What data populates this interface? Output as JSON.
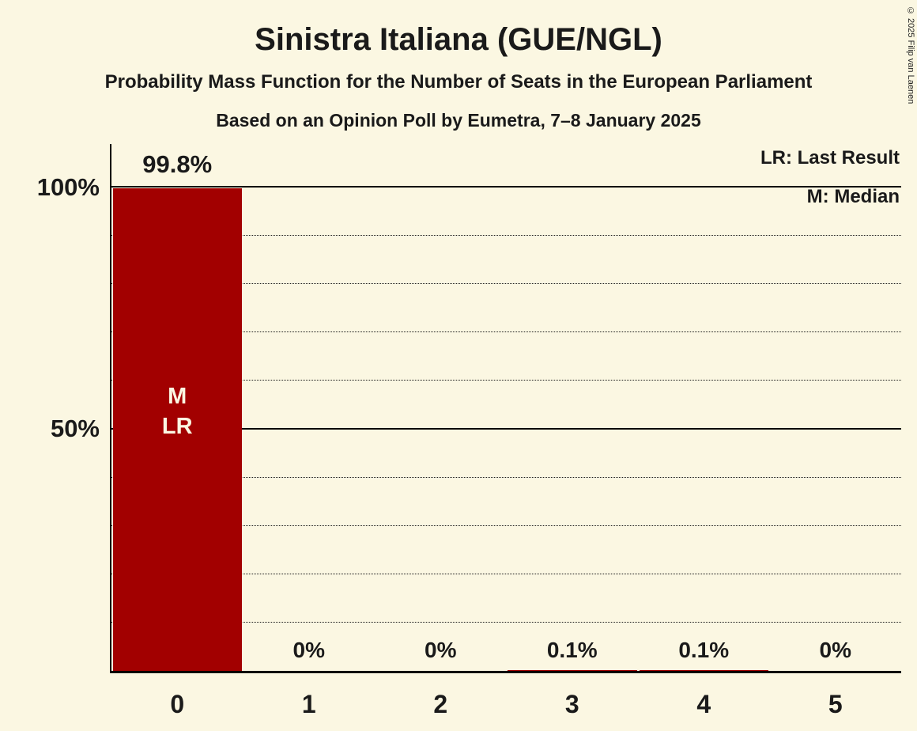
{
  "title": "Sinistra Italiana (GUE/NGL)",
  "subtitle": "Probability Mass Function for the Number of Seats in the European Parliament",
  "poll_info": "Based on an Opinion Poll by Eumetra, 7–8 January 2025",
  "copyright": "© 2025 Filip van Laenen",
  "legend": {
    "last_result": "LR: Last Result",
    "median": "M: Median"
  },
  "y_axis": {
    "tick_100": "100%",
    "tick_50": "50%"
  },
  "bar_marker": {
    "median": "M",
    "last_result": "LR"
  },
  "colors": {
    "background": "#FBF7E2",
    "bar": "#A20000",
    "text": "#1A1A1A",
    "bar_text": "#FBF7E2"
  },
  "chart_data": {
    "type": "bar",
    "title": "Sinistra Italiana (GUE/NGL)",
    "categories": [
      "0",
      "1",
      "2",
      "3",
      "4",
      "5"
    ],
    "values": [
      99.8,
      0,
      0,
      0.1,
      0.1,
      0
    ],
    "value_labels": [
      "99.8%",
      "0%",
      "0%",
      "0.1%",
      "0.1%",
      "0%"
    ],
    "ylim": [
      0,
      100
    ],
    "yticks": [
      50,
      100
    ],
    "gridlines": [
      10,
      20,
      30,
      40,
      50,
      60,
      70,
      80,
      90,
      100
    ],
    "grid_style": "dotted horizontal lines every 10%, solid at 50% and 100%",
    "legend_position": "top-right",
    "median_category": "0",
    "last_result_category": "0"
  }
}
